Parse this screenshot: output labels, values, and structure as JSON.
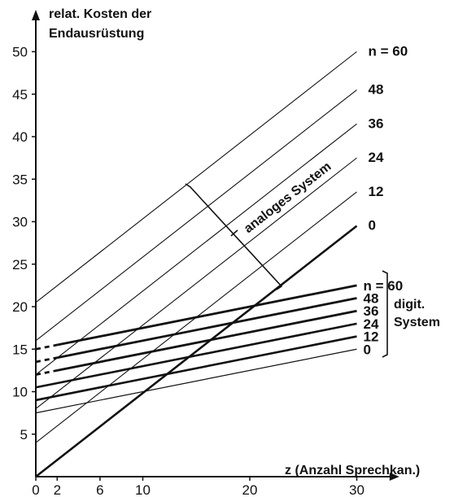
{
  "chart_data": {
    "type": "line",
    "title": "",
    "ylabel_line1": "relat. Kosten der",
    "ylabel_line2": "Endausrüstung",
    "xlabel": "z (Anzahl Sprechkan.)",
    "xlim": [
      0,
      32
    ],
    "ylim": [
      0,
      52
    ],
    "x_ticks": [
      0,
      2,
      6,
      10,
      20,
      30
    ],
    "y_ticks": [
      5,
      10,
      15,
      20,
      25,
      30,
      35,
      40,
      45,
      50
    ],
    "grid": false,
    "groups": [
      {
        "label": "analoges System",
        "series": [
          {
            "name": "n = 60",
            "x": [
              0,
              30
            ],
            "y": [
              20.5,
              50
            ]
          },
          {
            "name": "48",
            "x": [
              0,
              30
            ],
            "y": [
              16,
              45.5
            ]
          },
          {
            "name": "36",
            "x": [
              0,
              30
            ],
            "y": [
              12,
              41.5
            ]
          },
          {
            "name": "24",
            "x": [
              0,
              30
            ],
            "y": [
              8,
              37.5
            ]
          },
          {
            "name": "12",
            "x": [
              0,
              30
            ],
            "y": [
              4,
              33.5
            ]
          },
          {
            "name": "0",
            "x": [
              0,
              30
            ],
            "y": [
              0,
              29.5
            ]
          }
        ]
      },
      {
        "label_line1": "digit.",
        "label_line2": "System",
        "series": [
          {
            "name": "n = 60",
            "x": [
              0,
              30
            ],
            "y": [
              15,
              22.5
            ]
          },
          {
            "name": "48",
            "x": [
              0,
              30
            ],
            "y": [
              13.5,
              21
            ]
          },
          {
            "name": "36",
            "x": [
              0,
              30
            ],
            "y": [
              12,
              19.5
            ]
          },
          {
            "name": "24",
            "x": [
              0,
              30
            ],
            "y": [
              10.5,
              18
            ]
          },
          {
            "name": "12",
            "x": [
              0,
              30
            ],
            "y": [
              9,
              16.5
            ]
          },
          {
            "name": "0",
            "x": [
              0,
              30
            ],
            "y": [
              7.5,
              15
            ]
          }
        ]
      }
    ],
    "colors": {
      "ink": "#111111",
      "background": "#ffffff"
    }
  }
}
